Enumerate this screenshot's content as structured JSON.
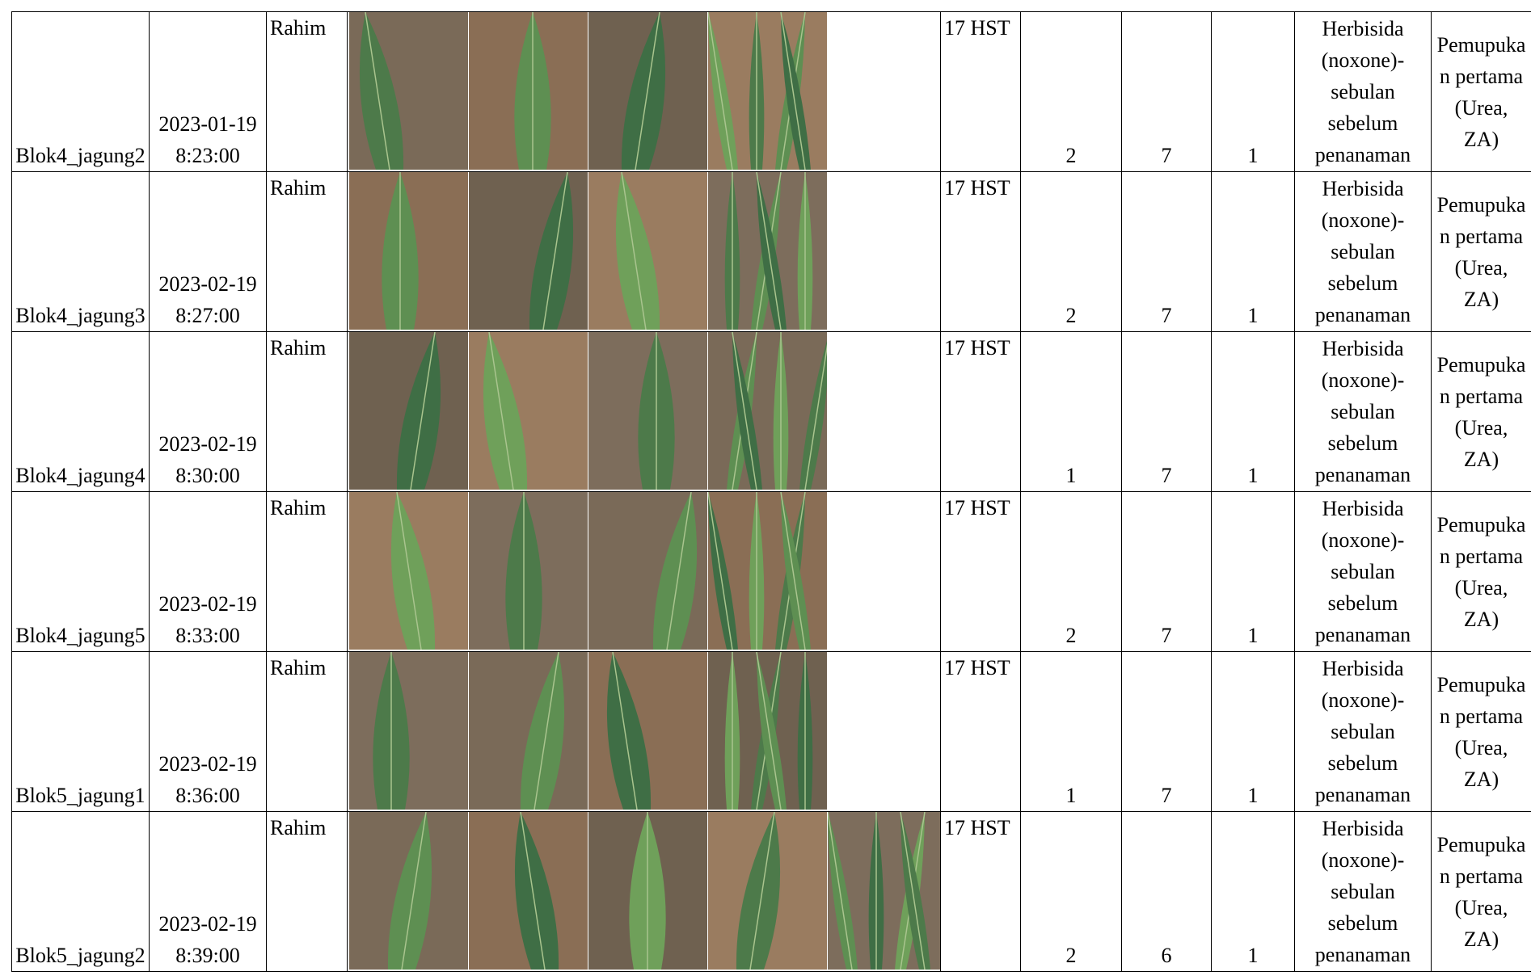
{
  "table": {
    "rows": [
      [
        "Blok4_jagung2",
        "2023-01-19 8:23:00",
        "Rahim",
        "17 HST",
        "2",
        "7",
        "1",
        "Herbisida (noxone)-sebulan sebelum penanaman",
        "Pemupukan pertama (Urea, ZA)"
      ],
      [
        "Blok4_jagung3",
        "2023-02-19 8:27:00",
        "Rahim",
        "17 HST",
        "2",
        "7",
        "1",
        "Herbisida (noxone)-sebulan sebelum penanaman",
        "Pemupukan pertama (Urea, ZA)"
      ],
      [
        "Blok4_jagung4",
        "2023-02-19 8:30:00",
        "Rahim",
        "17 HST",
        "1",
        "7",
        "1",
        "Herbisida (noxone)-sebulan sebelum penanaman",
        "Pemupukan pertama (Urea, ZA)"
      ],
      [
        "Blok4_jagung5",
        "2023-02-19 8:33:00",
        "Rahim",
        "17 HST",
        "2",
        "7",
        "1",
        "Herbisida (noxone)-sebulan sebelum penanaman",
        "Pemupukan pertama (Urea, ZA)"
      ],
      [
        "Blok5_jagung1",
        "2023-02-19 8:36:00",
        "Rahim",
        "17 HST",
        "1",
        "7",
        "1",
        "Herbisida (noxone)-sebulan sebelum penanaman",
        "Pemupukan pertama (Urea, ZA)"
      ],
      [
        "Blok5_jagung2",
        "2023-02-19 8:39:00",
        "Rahim",
        "17 HST",
        "2",
        "6",
        "1",
        "Herbisida (noxone)-sebulan sebelum penanaman",
        "Pemupukan pertama (Urea, ZA)"
      ]
    ]
  }
}
